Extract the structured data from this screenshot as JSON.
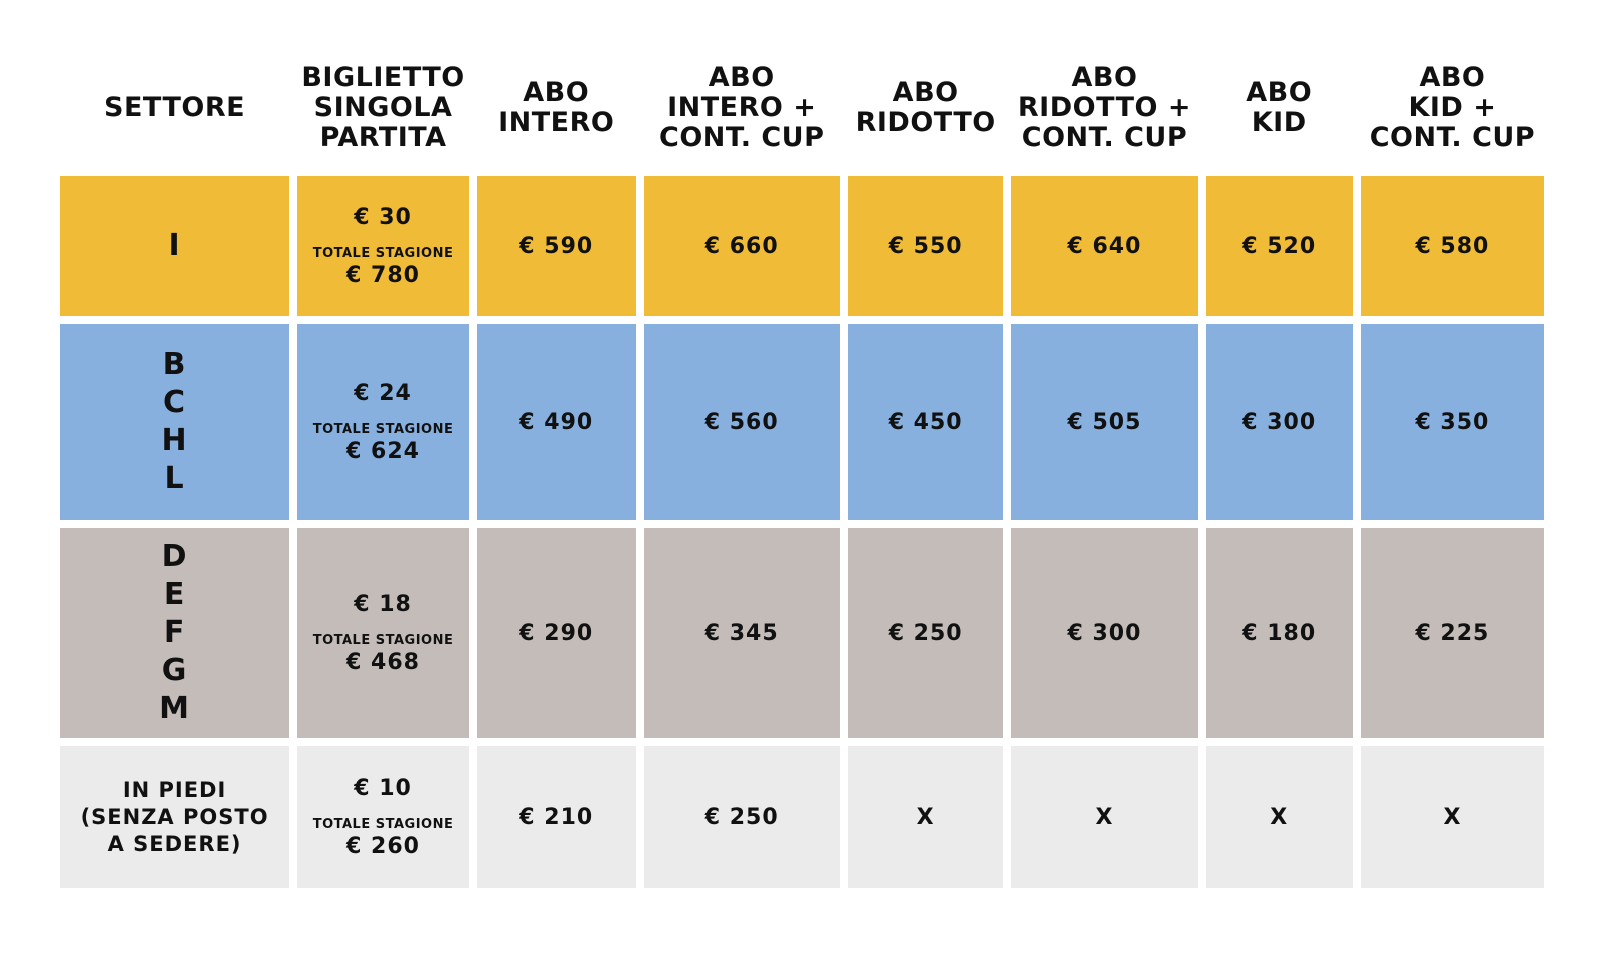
{
  "headers": [
    "SETTORE",
    "BIGLIETTO\nSINGOLA\nPARTITA",
    "ABO\nINTERO",
    "ABO\nINTERO +\nCONT. CUP",
    "ABO\nRIDOTTO",
    "ABO\nRIDOTTO +\nCONT. CUP",
    "ABO\nKID",
    "ABO\nKID +\nCONT. CUP"
  ],
  "colors": {
    "row1": "#f0bb36",
    "row2": "#87b0de",
    "row3": "#c3bcb9",
    "row4": "#ebebeb"
  },
  "rows": [
    {
      "sector": "I",
      "single": "€ 30",
      "season_label": "TOTALE STAGIONE",
      "season_total": "€ 780",
      "prices": [
        "€ 590",
        "€ 660",
        "€ 550",
        "€ 640",
        "€ 520",
        "€ 580"
      ]
    },
    {
      "sector": "B\nC\nH\nL",
      "single": "€ 24",
      "season_label": "TOTALE STAGIONE",
      "season_total": "€ 624",
      "prices": [
        "€ 490",
        "€ 560",
        "€ 450",
        "€ 505",
        "€ 300",
        "€ 350"
      ]
    },
    {
      "sector": "D\nE\nF\nG\nM",
      "single": "€ 18",
      "season_label": "TOTALE STAGIONE",
      "season_total": "€ 468",
      "prices": [
        "€ 290",
        "€ 345",
        "€ 250",
        "€ 300",
        "€ 180",
        "€ 225"
      ]
    },
    {
      "sector": "IN PIEDI\n(SENZA POSTO\nA SEDERE)",
      "single": "€ 10",
      "season_label": "TOTALE STAGIONE",
      "season_total": "€ 260",
      "prices": [
        "€ 210",
        "€ 250",
        "X",
        "X",
        "X",
        "X"
      ]
    }
  ]
}
